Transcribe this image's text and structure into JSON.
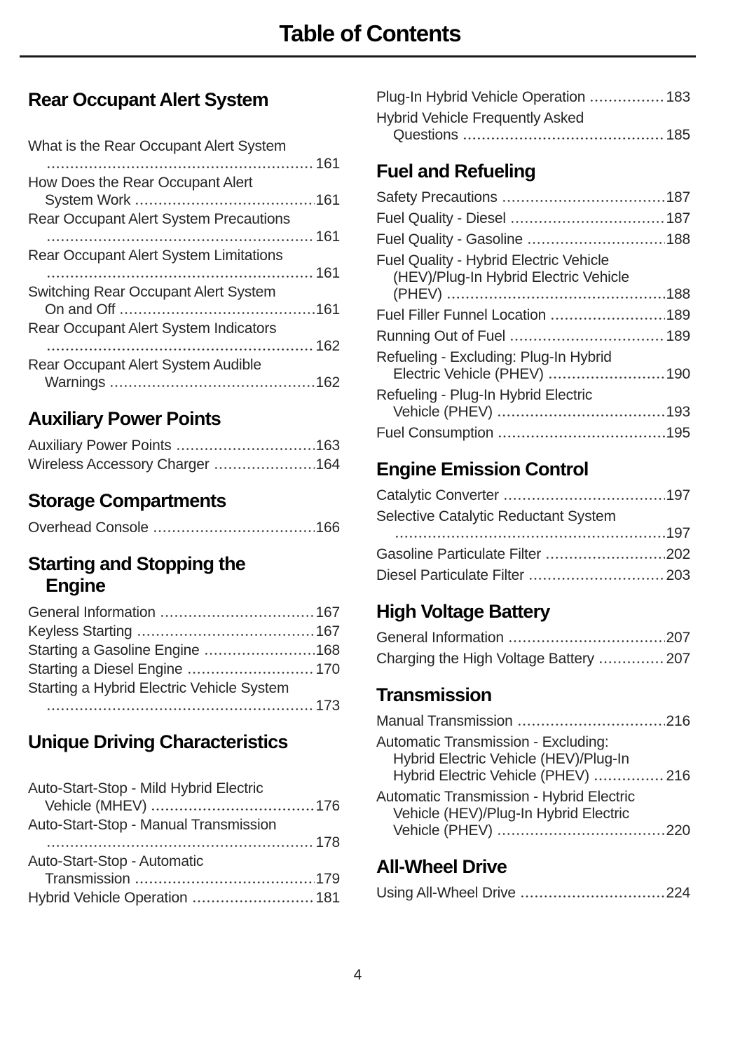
{
  "header": {
    "title": "Table of Contents"
  },
  "footer": {
    "page_number": "4"
  },
  "toc": {
    "columns": [
      {
        "side": "left",
        "sections": [
          {
            "heading_lines": [
              "Rear Occupant Alert System"
            ],
            "spacious": true,
            "entries": [
              {
                "lines": [
                  "What is the Rear Occupant Alert System",
                  ""
                ],
                "page": "161"
              },
              {
                "lines": [
                  "How Does the Rear Occupant Alert",
                  "System Work"
                ],
                "page": "161"
              },
              {
                "lines": [
                  "Rear Occupant Alert System Precautions",
                  ""
                ],
                "page": "161"
              },
              {
                "lines": [
                  "Rear Occupant Alert System Limitations",
                  ""
                ],
                "page": "161"
              },
              {
                "lines": [
                  "Switching Rear Occupant Alert System",
                  "On and Off"
                ],
                "page": "161"
              },
              {
                "lines": [
                  "Rear Occupant Alert System Indicators",
                  ""
                ],
                "page": "162"
              },
              {
                "lines": [
                  "Rear Occupant Alert System Audible",
                  "Warnings"
                ],
                "page": "162"
              }
            ]
          },
          {
            "heading_lines": [
              "Auxiliary Power Points"
            ],
            "spacious": false,
            "entries": [
              {
                "lines": [
                  "Auxiliary Power Points"
                ],
                "page": "163"
              },
              {
                "lines": [
                  "Wireless Accessory Charger"
                ],
                "page": "164"
              }
            ]
          },
          {
            "heading_lines": [
              "Storage Compartments"
            ],
            "spacious": false,
            "entries": [
              {
                "lines": [
                  "Overhead Console"
                ],
                "page": "166"
              }
            ]
          },
          {
            "heading_lines": [
              "Starting and Stopping the",
              "Engine"
            ],
            "spacious": false,
            "entries": [
              {
                "lines": [
                  "General Information"
                ],
                "page": "167"
              },
              {
                "lines": [
                  "Keyless Starting"
                ],
                "page": "167"
              },
              {
                "lines": [
                  "Starting a Gasoline Engine"
                ],
                "page": "168"
              },
              {
                "lines": [
                  "Starting a Diesel Engine"
                ],
                "page": "170"
              },
              {
                "lines": [
                  "Starting a Hybrid Electric Vehicle System",
                  ""
                ],
                "page": "173"
              }
            ]
          },
          {
            "heading_lines": [
              "Unique Driving Characteristics"
            ],
            "spacious": true,
            "entries": [
              {
                "lines": [
                  "Auto-Start-Stop - Mild Hybrid Electric",
                  "Vehicle (MHEV)"
                ],
                "page": "176"
              },
              {
                "lines": [
                  "Auto-Start-Stop - Manual Transmission",
                  ""
                ],
                "page": "178"
              },
              {
                "lines": [
                  "Auto-Start-Stop - Automatic",
                  "Transmission"
                ],
                "page": "179"
              },
              {
                "lines": [
                  "Hybrid Vehicle Operation"
                ],
                "page": "181"
              }
            ]
          }
        ]
      },
      {
        "side": "right",
        "sections": [
          {
            "heading_lines": [],
            "spacious": false,
            "entries": [
              {
                "lines": [
                  "Plug-In Hybrid Vehicle Operation"
                ],
                "page": "183"
              },
              {
                "lines": [
                  "Hybrid Vehicle Frequently Asked",
                  "Questions"
                ],
                "page": "185"
              }
            ]
          },
          {
            "heading_lines": [
              "Fuel and Refueling"
            ],
            "spacious": false,
            "entries": [
              {
                "lines": [
                  "Safety Precautions"
                ],
                "page": "187"
              },
              {
                "lines": [
                  "Fuel Quality - Diesel"
                ],
                "page": "187"
              },
              {
                "lines": [
                  "Fuel Quality - Gasoline"
                ],
                "page": "188"
              },
              {
                "lines": [
                  "Fuel Quality - Hybrid Electric Vehicle",
                  "(HEV)/Plug-In Hybrid Electric Vehicle",
                  "(PHEV)"
                ],
                "page": "188"
              },
              {
                "lines": [
                  "Fuel Filler Funnel Location"
                ],
                "page": "189"
              },
              {
                "lines": [
                  "Running Out of Fuel"
                ],
                "page": "189"
              },
              {
                "lines": [
                  "Refueling - Excluding: Plug-In Hybrid",
                  "Electric Vehicle (PHEV)"
                ],
                "page": "190"
              },
              {
                "lines": [
                  "Refueling - Plug-In Hybrid Electric",
                  "Vehicle (PHEV)"
                ],
                "page": "193"
              },
              {
                "lines": [
                  "Fuel Consumption"
                ],
                "page": "195"
              }
            ]
          },
          {
            "heading_lines": [
              "Engine Emission Control"
            ],
            "spacious": false,
            "entries": [
              {
                "lines": [
                  "Catalytic Converter"
                ],
                "page": "197"
              },
              {
                "lines": [
                  "Selective Catalytic Reductant System",
                  ""
                ],
                "page": "197"
              },
              {
                "lines": [
                  "Gasoline Particulate Filter"
                ],
                "page": "202"
              },
              {
                "lines": [
                  "Diesel Particulate Filter"
                ],
                "page": "203"
              }
            ]
          },
          {
            "heading_lines": [
              "High Voltage Battery"
            ],
            "spacious": false,
            "entries": [
              {
                "lines": [
                  "General Information"
                ],
                "page": "207"
              },
              {
                "lines": [
                  "Charging the High Voltage Battery"
                ],
                "page": "207"
              }
            ]
          },
          {
            "heading_lines": [
              "Transmission"
            ],
            "spacious": false,
            "entries": [
              {
                "lines": [
                  "Manual Transmission"
                ],
                "page": "216"
              },
              {
                "lines": [
                  "Automatic Transmission - Excluding:",
                  "Hybrid Electric Vehicle (HEV)/Plug-In",
                  "Hybrid Electric Vehicle (PHEV)"
                ],
                "page": "216"
              },
              {
                "lines": [
                  "Automatic Transmission - Hybrid Electric",
                  "Vehicle (HEV)/Plug-In Hybrid Electric",
                  "Vehicle (PHEV)"
                ],
                "page": "220"
              }
            ]
          },
          {
            "heading_lines": [
              "All-Wheel Drive"
            ],
            "spacious": false,
            "entries": [
              {
                "lines": [
                  "Using All-Wheel Drive"
                ],
                "page": "224"
              }
            ]
          }
        ]
      }
    ]
  }
}
